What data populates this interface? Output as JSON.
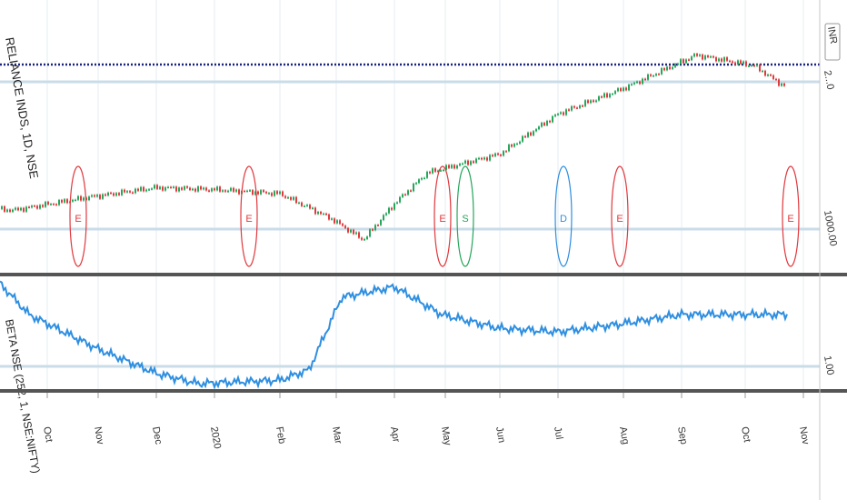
{
  "symbol_label": "RELIANCE INDS, 1D, NSE",
  "currency_badge": "INR",
  "beta_label": "BETA NSE (252, 1, NSE:NIFTY)",
  "colors": {
    "up_candle": "#26a65b",
    "down_candle": "#e0393e",
    "beta_line": "#2f8fe0",
    "earnings_marker": "#e0393e",
    "split_marker": "#26a65b",
    "dividend_marker": "#2f8fe0",
    "price_line": "#1a237e",
    "reference_line": "#c9dce8",
    "pane_divider": "#555555"
  },
  "chart_data": [
    {
      "type": "candlestick",
      "title": "RELIANCE INDS, 1D, NSE",
      "x_ticks": [
        "Oct",
        "Nov",
        "Dec",
        "2020",
        "Feb",
        "Mar",
        "Apr",
        "May",
        "Jun",
        "Jul",
        "Aug",
        "Sep",
        "Oct",
        "Nov"
      ],
      "y_tick_labels": [
        "2...0",
        "1000.00"
      ],
      "series": [
        {
          "points": [
            [
              "Oct",
              1140
            ],
            [
              "Nov",
              1240
            ],
            [
              "Dec",
              1310
            ],
            [
              "2020",
              1295
            ],
            [
              "Feb",
              1265
            ],
            [
              "Mar",
              1080
            ],
            [
              "Mar",
              920
            ],
            [
              "Apr",
              1190
            ],
            [
              "May",
              1420
            ],
            [
              "Jun",
              1560
            ],
            [
              "Jul",
              1860
            ],
            [
              "Aug",
              2050
            ],
            [
              "Sep",
              2300
            ],
            [
              "Oct",
              2220
            ],
            [
              "Oct",
              2080
            ]
          ]
        }
      ],
      "events": [
        {
          "label": "E",
          "type": "earnings",
          "month": "Oct"
        },
        {
          "label": "E",
          "type": "earnings",
          "month": "2020"
        },
        {
          "label": "E",
          "type": "earnings",
          "month": "May"
        },
        {
          "label": "S",
          "type": "split",
          "month": "May"
        },
        {
          "label": "D",
          "type": "dividend",
          "month": "Jul"
        },
        {
          "label": "E",
          "type": "earnings",
          "month": "Aug"
        },
        {
          "label": "E",
          "type": "earnings",
          "month": "Oct"
        }
      ]
    },
    {
      "type": "line",
      "title": "BETA NSE (252, 1, NSE:NIFTY)",
      "y_tick_labels": [
        "1.00"
      ],
      "series": [
        {
          "points": [
            [
              "Oct",
              1.24
            ],
            [
              "Oct",
              1.15
            ],
            [
              "Nov",
              1.05
            ],
            [
              "Dec",
              0.98
            ],
            [
              "2020",
              0.95
            ],
            [
              "Feb",
              0.96
            ],
            [
              "Mar",
              0.99
            ],
            [
              "Mar",
              1.2
            ],
            [
              "Apr",
              1.23
            ],
            [
              "May",
              1.15
            ],
            [
              "Jun",
              1.11
            ],
            [
              "Jul",
              1.1
            ],
            [
              "Aug",
              1.12
            ],
            [
              "Sep",
              1.15
            ],
            [
              "Oct",
              1.15
            ],
            [
              "Oct",
              1.15
            ]
          ]
        }
      ]
    }
  ]
}
